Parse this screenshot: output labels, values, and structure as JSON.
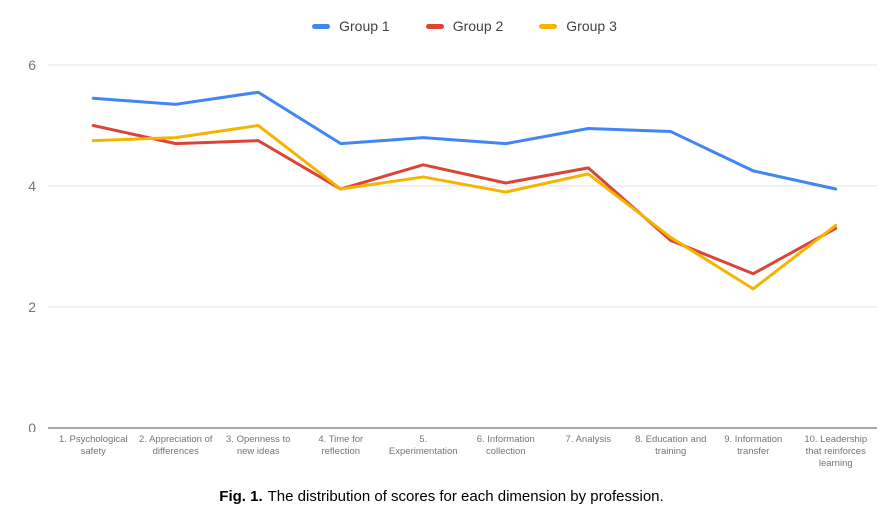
{
  "caption": {
    "prefix": "Fig. 1.",
    "text": "The distribution of scores for each dimension by profession."
  },
  "chart_data": {
    "type": "line",
    "title": "",
    "xlabel": "",
    "ylabel": "",
    "ylim": [
      0,
      6
    ],
    "yticks": [
      0,
      2,
      4,
      6
    ],
    "grid": true,
    "legend_position": "top",
    "categories": [
      "1. Psychological safety",
      "2. Appreciation of differences",
      "3. Openness to new ideas",
      "4. Time for reflection",
      "5. Experimentation",
      "6. Information collection",
      "7. Analysis",
      "8. Education and training",
      "9. Information transfer",
      "10. Leadership that reinforces learning"
    ],
    "series": [
      {
        "name": "Group 1",
        "color": "#4285F4",
        "values": [
          5.45,
          5.35,
          5.55,
          4.7,
          4.8,
          4.7,
          4.95,
          4.9,
          4.25,
          3.95
        ]
      },
      {
        "name": "Group 2",
        "color": "#DB4437",
        "values": [
          5.0,
          4.7,
          4.75,
          3.95,
          4.35,
          4.05,
          4.3,
          3.1,
          2.55,
          3.3
        ]
      },
      {
        "name": "Group 3",
        "color": "#F4B400",
        "values": [
          4.75,
          4.8,
          5.0,
          3.95,
          4.15,
          3.9,
          4.2,
          3.15,
          2.3,
          3.35
        ]
      }
    ]
  },
  "colors": {
    "gridline": "#e3e3e3",
    "axis_line": "#757575",
    "tick_text": "#757575",
    "legend_text": "#424242"
  }
}
